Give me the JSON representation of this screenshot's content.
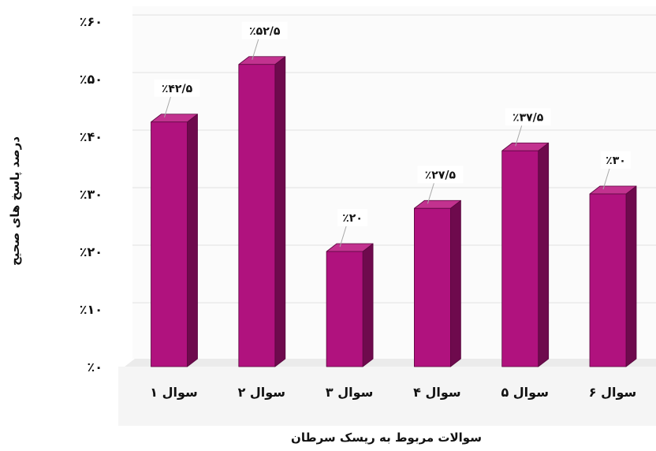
{
  "chart_data": {
    "type": "bar",
    "style": "3d-column",
    "categories": [
      "سوال ۱",
      "سوال ۲",
      "سوال ۳",
      "سوال ۴",
      "سوال ۵",
      "سوال ۶"
    ],
    "values": [
      42.5,
      52.5,
      20,
      27.5,
      37.5,
      30
    ],
    "data_labels": [
      "٪۴۲/۵",
      "٪۵۲/۵",
      "٪۲۰",
      "٪۲۷/۵",
      "٪۳۷/۵",
      "٪۳۰"
    ],
    "xlabel": "سوالات مربوط به ریسک سرطان",
    "ylabel": "درصد پاسخ های صحیح",
    "ylim": [
      0,
      60
    ],
    "yticks": [
      0,
      10,
      20,
      30,
      40,
      50,
      60
    ],
    "ytick_labels": [
      "٪۰",
      "٪۱۰",
      "٪۲۰",
      "٪۳۰",
      "٪۴۰",
      "٪۵۰",
      "٪۶۰"
    ],
    "grid": true,
    "legend": false,
    "colors": {
      "bar_front": "#b0127e",
      "bar_side": "#6e0a4d",
      "bar_top": "#c2328f",
      "label_background": "#ffffff"
    }
  }
}
